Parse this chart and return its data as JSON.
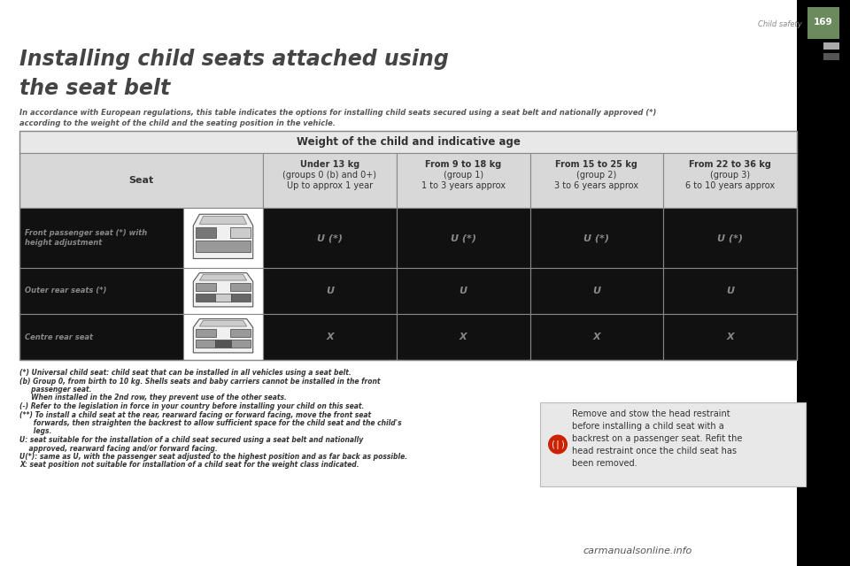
{
  "page_number": "169",
  "chapter": "Child safety",
  "title_line1": "Installing child seats attached using",
  "title_line2": "the seat belt",
  "subtitle": "In accordance with European regulations, this table indicates the options for installing child seats secured using a seat belt and nationally approved (*)\naccording to the weight of the child and the seating position in the vehicle.",
  "table_header_main": "Weight of the child and indicative age",
  "col_headers": [
    "Under 13 kg\n(groups 0 (b) and 0+)\nUp to approx 1 year",
    "From 9 to 18 kg\n(group 1)\n1 to 3 years approx",
    "From 15 to 25 kg\n(group 2)\n3 to 6 years approx",
    "From 22 to 36 kg\n(group 3)\n6 to 10 years approx"
  ],
  "row_labels": [
    "Front passenger seat (*) with\nheight adjustment",
    "Outer rear seats (*)",
    "Centre rear seat"
  ],
  "cell_data": [
    [
      "U (*)",
      "U (*)",
      "U (*)",
      "U (*)"
    ],
    [
      "U",
      "U",
      "U",
      "U"
    ],
    [
      "X",
      "X",
      "X",
      "X"
    ]
  ],
  "footnotes": [
    "(*) Universal child seat: child seat that can be installed in all vehicles using a seat belt.",
    "(b) Group 0, from birth to 10 kg. Shells seats and baby carriers cannot be installed in the front",
    "     passenger seat.",
    "     When installed in the 2nd row, they prevent use of the other seats.",
    "(-) Refer to the legislation in force in your country before installing your child on this seat.",
    "(**) To install a child seat at the rear, rearward facing or forward facing, move the front seat",
    "      forwards, then straighten the backrest to allow sufficient space for the child seat and the child's",
    "      legs.",
    "U: seat suitable for the installation of a child seat secured using a seat belt and nationally",
    "    approved, rearward facing and/or forward facing.",
    "U(*): same as U, with the passenger seat adjusted to the highest position and as far back as possible.",
    "X: seat position not suitable for installation of a child seat for the weight class indicated."
  ],
  "warning_text": "Remove and stow the head restraint\nbefore installing a child seat with a\nbackrest on a passenger seat. Refit the\nhead restraint once the child seat has\nbeen removed.",
  "bg_color": "#000000",
  "table_header_bg": "#e8e8e8",
  "table_seat_header_bg": "#d8d8d8",
  "table_data_bg": "#111111",
  "table_border_color": "#888888",
  "text_dark": "#333333",
  "text_light": "#aaaaaa",
  "title_color": "#444444",
  "subtitle_color": "#555555",
  "footnote_color": "#333333",
  "cell_text_color": "#888888",
  "green_color": "#6b8a5e",
  "warning_bg": "#e8e8e8",
  "warning_text_color": "#333333",
  "watermark_color": "#555555"
}
